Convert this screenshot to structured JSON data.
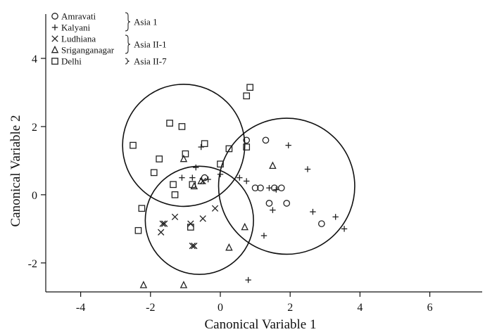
{
  "chart_data": {
    "type": "scatter",
    "title": "",
    "xlabel": "Canonical Variable 1",
    "ylabel": "Canonical Variable 2",
    "xlim": [
      -5,
      7.5
    ],
    "ylim": [
      -2.85,
      5.3
    ],
    "xticks": [
      -4,
      -2,
      0,
      2,
      4,
      6
    ],
    "yticks": [
      -2,
      0,
      2,
      4
    ],
    "grid": false,
    "legend_position": "top-left",
    "series": [
      {
        "name": "Amravati",
        "marker": "circle",
        "points": [
          [
            0.75,
            1.6
          ],
          [
            1.3,
            1.6
          ],
          [
            1.15,
            0.2
          ],
          [
            1.0,
            0.2
          ],
          [
            1.75,
            0.2
          ],
          [
            1.55,
            0.2
          ],
          [
            1.4,
            -0.25
          ],
          [
            1.9,
            -0.25
          ],
          [
            2.9,
            -0.85
          ],
          [
            -0.45,
            0.5
          ]
        ]
      },
      {
        "name": "Kalyani",
        "marker": "plus",
        "points": [
          [
            -0.7,
            0.8
          ],
          [
            -1.1,
            0.5
          ],
          [
            -0.8,
            0.5
          ],
          [
            -0.55,
            1.4
          ],
          [
            -0.35,
            0.45
          ],
          [
            0.0,
            0.6
          ],
          [
            0.55,
            0.5
          ],
          [
            0.75,
            0.4
          ],
          [
            1.4,
            0.2
          ],
          [
            1.6,
            0.15
          ],
          [
            1.5,
            -0.45
          ],
          [
            1.95,
            1.45
          ],
          [
            2.5,
            0.75
          ],
          [
            2.65,
            -0.5
          ],
          [
            3.3,
            -0.65
          ],
          [
            3.55,
            -1.0
          ],
          [
            1.25,
            -1.2
          ],
          [
            0.8,
            -2.5
          ]
        ]
      },
      {
        "name": "Ludhiana",
        "marker": "x",
        "points": [
          [
            -1.6,
            -0.85
          ],
          [
            -1.65,
            -0.85
          ],
          [
            -1.7,
            -1.1
          ],
          [
            -1.3,
            -0.65
          ],
          [
            -0.85,
            -0.85
          ],
          [
            -0.8,
            -1.5
          ],
          [
            -0.75,
            -1.5
          ],
          [
            -0.5,
            -0.7
          ],
          [
            -0.15,
            -0.4
          ],
          [
            -0.5,
            0.4
          ]
        ]
      },
      {
        "name": "Sriganganagar",
        "marker": "triangle",
        "points": [
          [
            -1.05,
            1.05
          ],
          [
            -0.75,
            0.25
          ],
          [
            -0.55,
            0.4
          ],
          [
            1.5,
            0.85
          ],
          [
            0.7,
            -0.95
          ],
          [
            0.25,
            -1.55
          ],
          [
            -2.2,
            -2.65
          ],
          [
            -1.05,
            -2.65
          ]
        ]
      },
      {
        "name": "Delhi",
        "marker": "square",
        "points": [
          [
            -2.5,
            1.45
          ],
          [
            -1.75,
            1.05
          ],
          [
            -1.45,
            2.1
          ],
          [
            -1.1,
            2.0
          ],
          [
            -1.0,
            1.2
          ],
          [
            -0.45,
            1.5
          ],
          [
            0.0,
            0.9
          ],
          [
            0.25,
            1.35
          ],
          [
            0.75,
            1.4
          ],
          [
            0.75,
            2.9
          ],
          [
            0.85,
            3.15
          ],
          [
            -1.9,
            0.65
          ],
          [
            -1.35,
            0.3
          ],
          [
            -1.3,
            0.0
          ],
          [
            -0.8,
            0.3
          ],
          [
            -2.25,
            -0.4
          ],
          [
            -2.35,
            -1.05
          ],
          [
            -0.85,
            -0.95
          ]
        ]
      }
    ],
    "clusters": [
      {
        "cx": -1.05,
        "cy": 1.45,
        "r": 1.75
      },
      {
        "cx": -0.6,
        "cy": -0.75,
        "r": 1.55
      },
      {
        "cx": 1.9,
        "cy": 0.25,
        "r": 1.95
      }
    ],
    "group_labels": [
      {
        "text": "Asia 1",
        "members": [
          "Amravati",
          "Kalyani"
        ]
      },
      {
        "text": "Asia II-1",
        "members": [
          "Ludhiana",
          "Sriganganagar"
        ]
      },
      {
        "text": "Asia II-7",
        "members": [
          "Delhi"
        ]
      }
    ]
  }
}
